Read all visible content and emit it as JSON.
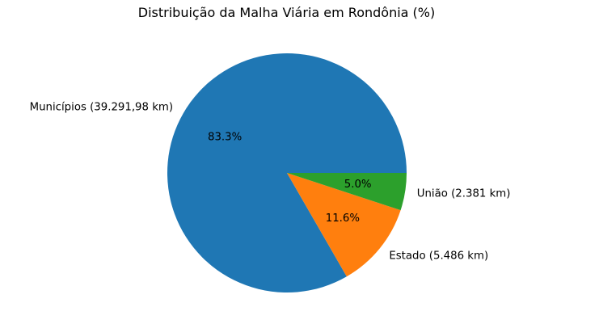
{
  "chart_data": {
    "type": "pie",
    "title": "Distribuição da Malha Viária em Rondônia (%)",
    "categories": [
      "Municípios (39.291,98 km)",
      "Estado (5.486 km)",
      "União (2.381 km)"
    ],
    "values": [
      39291.98,
      5486,
      2381
    ],
    "percent_labels": [
      "83.3%",
      "11.6%",
      "5.0%"
    ],
    "colors": [
      "#1f77b4",
      "#ff7f0e",
      "#2ca02c"
    ],
    "start_angle_deg": 0,
    "direction": "counterclockwise",
    "legend": "none"
  }
}
